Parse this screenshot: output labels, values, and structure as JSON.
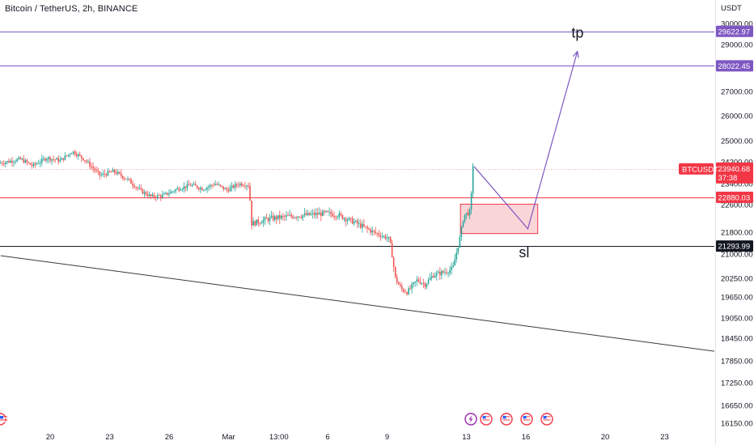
{
  "header": {
    "title": "Bitcoin / TetherUS, 2h, BINANCE"
  },
  "colors": {
    "up": "#26a69a",
    "down": "#ef5350",
    "tp_line": "#7e57c2",
    "entry_line": "#f23645",
    "sl_line": "#131722",
    "trend_line": "#3a3a3a",
    "zone_fill": "#f8c3c8",
    "zone_border": "#f23645",
    "text": "#131722"
  },
  "events": [
    {
      "name": "lightning-icon"
    },
    {
      "name": "us-flag-icon"
    },
    {
      "name": "us-flag-icon"
    },
    {
      "name": "us-flag-icon"
    },
    {
      "name": "us-flag-icon"
    },
    {
      "name": "us-flag-icon"
    }
  ],
  "chart_data": {
    "type": "candlestick",
    "symbol": "BTCUSDT",
    "quote_currency": "USDT",
    "y_unit_label": "USDT",
    "ylim": [
      16150,
      30300
    ],
    "y_ticks": [
      {
        "value": 30000,
        "label": "30000.00"
      },
      {
        "value": 29000,
        "label": "29000.00"
      },
      {
        "value": 28000,
        "label": "28000.00"
      },
      {
        "value": 27000,
        "label": "27000.00"
      },
      {
        "value": 26000,
        "label": "26000.00"
      },
      {
        "value": 25000,
        "label": "25000.00"
      },
      {
        "value": 24200,
        "label": "24200.00"
      },
      {
        "value": 23400,
        "label": "23400.00"
      },
      {
        "value": 22600,
        "label": "22600.00"
      },
      {
        "value": 21800,
        "label": "21800.00"
      },
      {
        "value": 21000,
        "label": "21000.00"
      },
      {
        "value": 20250,
        "label": "20250.00"
      },
      {
        "value": 19650,
        "label": "19650.00"
      },
      {
        "value": 19050,
        "label": "19050.00"
      },
      {
        "value": 18450,
        "label": "18450.00"
      },
      {
        "value": 17850,
        "label": "17850.00"
      },
      {
        "value": 17250,
        "label": "17250.00"
      },
      {
        "value": 16650,
        "label": "16650.00"
      },
      {
        "value": 16150,
        "label": "16150.00"
      }
    ],
    "x_ticks": [
      {
        "day": 20,
        "label": "20"
      },
      {
        "day": 23,
        "label": "23"
      },
      {
        "day": 26,
        "label": "26"
      },
      {
        "day": 29,
        "label": "Mar"
      },
      {
        "day": 31.54,
        "label": "13:00"
      },
      {
        "day": 34,
        "label": "6"
      },
      {
        "day": 37,
        "label": "9"
      },
      {
        "day": 41,
        "label": "13"
      },
      {
        "day": 44,
        "label": "16"
      },
      {
        "day": 48,
        "label": "20"
      },
      {
        "day": 51,
        "label": "23"
      }
    ],
    "price_key_points": [
      {
        "day": 17.5,
        "price": 24150
      },
      {
        "day": 18.6,
        "price": 24300
      },
      {
        "day": 19.2,
        "price": 24050
      },
      {
        "day": 19.9,
        "price": 24350
      },
      {
        "day": 20.6,
        "price": 24250
      },
      {
        "day": 21.2,
        "price": 24600
      },
      {
        "day": 21.8,
        "price": 24300
      },
      {
        "day": 22.6,
        "price": 23700
      },
      {
        "day": 23.3,
        "price": 23850
      },
      {
        "day": 24.0,
        "price": 23550
      },
      {
        "day": 24.7,
        "price": 23100
      },
      {
        "day": 25.2,
        "price": 22900
      },
      {
        "day": 25.8,
        "price": 22950
      },
      {
        "day": 26.5,
        "price": 23200
      },
      {
        "day": 27.2,
        "price": 23350
      },
      {
        "day": 27.8,
        "price": 23200
      },
      {
        "day": 28.4,
        "price": 23400
      },
      {
        "day": 29.0,
        "price": 23150
      },
      {
        "day": 29.6,
        "price": 23400
      },
      {
        "day": 30.1,
        "price": 23350
      },
      {
        "day": 30.25,
        "price": 22050
      },
      {
        "day": 31.2,
        "price": 22200
      },
      {
        "day": 32.0,
        "price": 22250
      },
      {
        "day": 33.0,
        "price": 22300
      },
      {
        "day": 34.0,
        "price": 22350
      },
      {
        "day": 34.6,
        "price": 22300
      },
      {
        "day": 35.4,
        "price": 22100
      },
      {
        "day": 36.4,
        "price": 21800
      },
      {
        "day": 37.2,
        "price": 21550
      },
      {
        "day": 37.5,
        "price": 20250
      },
      {
        "day": 37.8,
        "price": 19900
      },
      {
        "day": 38.1,
        "price": 19800
      },
      {
        "day": 38.6,
        "price": 20200
      },
      {
        "day": 39.0,
        "price": 20050
      },
      {
        "day": 39.4,
        "price": 20350
      },
      {
        "day": 40.0,
        "price": 20450
      },
      {
        "day": 40.4,
        "price": 20550
      },
      {
        "day": 40.7,
        "price": 21400
      },
      {
        "day": 40.95,
        "price": 22300
      },
      {
        "day": 41.3,
        "price": 22400
      },
      {
        "day": 41.4,
        "price": 24100
      }
    ],
    "horizontal_levels": [
      {
        "name": "tp-2",
        "price": 29622.97,
        "label": "29622.97",
        "color": "#7e57c2"
      },
      {
        "name": "tp-1",
        "price": 28022.45,
        "label": "28022.45",
        "color": "#7e57c2"
      },
      {
        "name": "entry",
        "price": 22880.03,
        "label": "22880.03",
        "color": "#f23645"
      },
      {
        "name": "stop-loss",
        "price": 21293.99,
        "label": "21293.99",
        "color": "#131722"
      }
    ],
    "current_price": {
      "symbol_label": "BTCUSDT",
      "price": 23940.68,
      "label": "23940.68",
      "countdown": "37:38"
    },
    "annotations": [
      {
        "text": "tp",
        "day": 46.3,
        "price": 29330
      },
      {
        "text": "sl",
        "day": 43.65,
        "price": 20900
      }
    ],
    "demand_zone": {
      "day_start": 40.7,
      "day_end": 44.6,
      "price_low": 21750,
      "price_high": 22620
    },
    "projection_path": [
      {
        "day": 41.4,
        "price": 24020
      },
      {
        "day": 44.1,
        "price": 21900
      },
      {
        "day": 46.6,
        "price": 28680
      }
    ],
    "trend_line": [
      {
        "day": 17.5,
        "price": 20950
      },
      {
        "day": 54.3,
        "price": 18050
      }
    ]
  }
}
